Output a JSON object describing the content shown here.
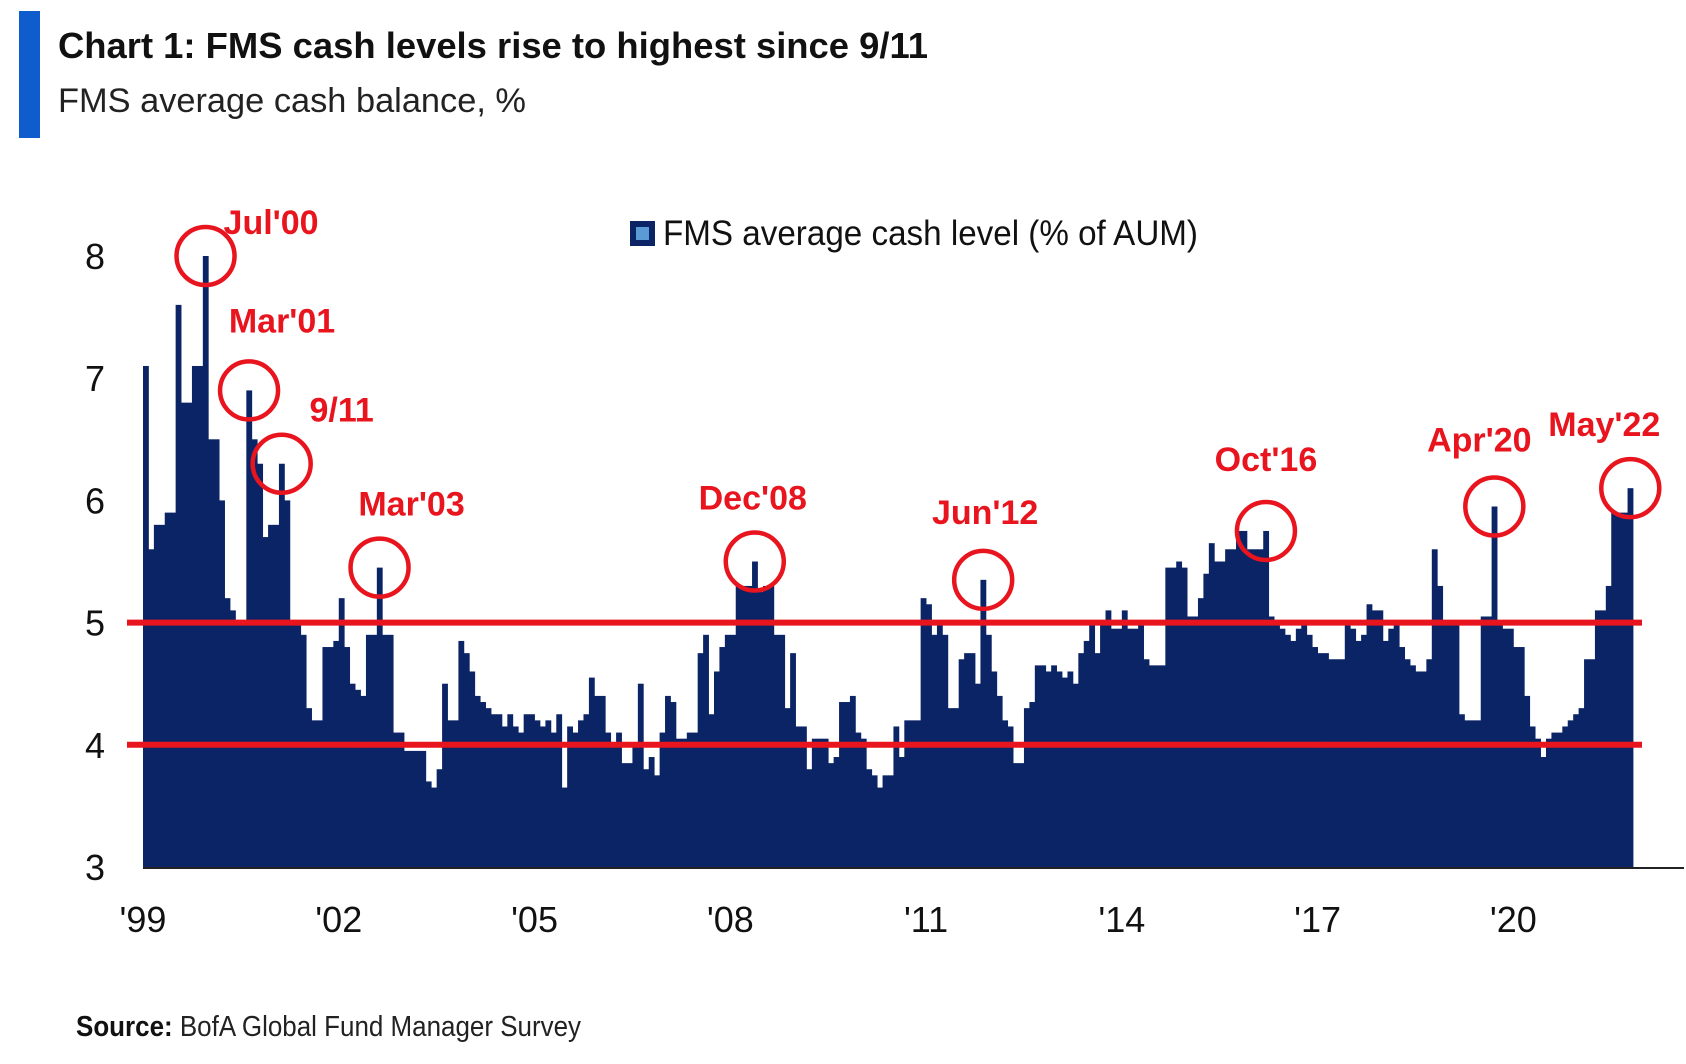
{
  "header": {
    "title": "Chart 1: FMS cash levels rise to highest since 9/11",
    "subtitle": "FMS average cash balance, %"
  },
  "footer": {
    "source_label": "Source:",
    "source_text": " BofA Global Fund Manager Survey"
  },
  "colors": {
    "accent_bar": "#0f5ccc",
    "bars": "#0b2466",
    "reference_lines": "#e8141e",
    "annotations": "#e8141e",
    "legend_inner": "#5b9bd5"
  },
  "chart_data": {
    "type": "bar",
    "title": "Chart 1: FMS cash levels rise to highest since 9/11",
    "subtitle": "FMS average cash balance, %",
    "xlabel": "",
    "ylabel": "",
    "ylim": [
      3,
      8
    ],
    "y_ticks": [
      "3",
      "4",
      "5",
      "6",
      "7",
      "8"
    ],
    "x_ticks": [
      "'99",
      "'02",
      "'05",
      "'08",
      "'11",
      "'14",
      "'17",
      "'20"
    ],
    "grid": false,
    "legend": {
      "placement": "top-center",
      "entries": [
        "FMS average cash level (% of AUM)"
      ]
    },
    "frequency": "monthly",
    "reference_lines": [
      5,
      4
    ],
    "series": [
      {
        "name": "FMS average cash level (% of AUM)",
        "data_by_year": {
          "1999": [
            7.1,
            5.6,
            5.8,
            5.8,
            5.9
          ],
          "2000": [
            5.9,
            7.6,
            6.8,
            6.8,
            7.1,
            7.1,
            8.0,
            6.5,
            6.5,
            6.0,
            5.2,
            5.1
          ],
          "2001": [
            5.0,
            5.0,
            6.9,
            6.5,
            6.3,
            5.7,
            5.8,
            5.8,
            6.3,
            6.0,
            5.0,
            5.0
          ],
          "2002": [
            4.9,
            4.3,
            4.2,
            4.2,
            4.8,
            4.8,
            4.85,
            5.2,
            4.8,
            4.5,
            4.45,
            4.4
          ],
          "2003": [
            4.9,
            4.9,
            5.45,
            4.9,
            4.9,
            4.1,
            4.1,
            3.95,
            3.95,
            3.95,
            3.95,
            3.7
          ],
          "2004": [
            3.65,
            3.8,
            4.5,
            4.2,
            4.2,
            4.85,
            4.75,
            4.6,
            4.4,
            4.35,
            4.3,
            4.25
          ],
          "2005": [
            4.25,
            4.15,
            4.25,
            4.15,
            4.1,
            4.25,
            4.25,
            4.2,
            4.15,
            4.2,
            4.1,
            4.25
          ],
          "2006": [
            3.65,
            4.15,
            4.1,
            4.2,
            4.25,
            4.55,
            4.4,
            4.4,
            4.1,
            4.0,
            4.1,
            3.85
          ],
          "2007": [
            3.85,
            4.0,
            4.5,
            3.8,
            3.9,
            3.75,
            4.1,
            4.4,
            4.35,
            4.05,
            4.05,
            4.1
          ],
          "2008": [
            4.1,
            4.75,
            4.9,
            4.25,
            4.6,
            4.8,
            4.9,
            4.9,
            5.3,
            5.3,
            5.3,
            5.5
          ],
          "2009": [
            5.25,
            5.3,
            5.3,
            4.9,
            4.9,
            4.3,
            4.75,
            4.15,
            4.15,
            3.8,
            4.05,
            4.05
          ],
          "2010": [
            4.05,
            3.85,
            3.9,
            4.35,
            4.35,
            4.4,
            4.1,
            4.05,
            3.8,
            3.75,
            3.65,
            3.75
          ],
          "2011": [
            3.75,
            4.15,
            3.9,
            4.2,
            4.2,
            4.2,
            5.2,
            5.15,
            4.9,
            5.0,
            4.9,
            4.3
          ],
          "2012": [
            4.3,
            4.7,
            4.75,
            4.75,
            4.5,
            5.35,
            4.9,
            4.6,
            4.4,
            4.2,
            4.15,
            3.85
          ],
          "2013": [
            3.85,
            4.3,
            4.35,
            4.65,
            4.65,
            4.6,
            4.65,
            4.6,
            4.55,
            4.6,
            4.5,
            4.75
          ],
          "2014": [
            4.85,
            5.0,
            4.75,
            5.0,
            5.1,
            4.95,
            4.95,
            5.1,
            4.95,
            4.95,
            5.0,
            4.7
          ],
          "2015": [
            4.65,
            4.65,
            4.65,
            5.45,
            5.45,
            5.5,
            5.45,
            5.05,
            5.05,
            5.2,
            5.4,
            5.65
          ],
          "2016": [
            5.5,
            5.5,
            5.6,
            5.6,
            5.75,
            5.75,
            5.6,
            5.6,
            5.6,
            5.75,
            5.05,
            5.0
          ],
          "2017": [
            4.95,
            4.9,
            4.85,
            4.95,
            5.0,
            4.9,
            4.8,
            4.75,
            4.75,
            4.7,
            4.7,
            4.7
          ],
          "2018": [
            5.0,
            4.95,
            4.85,
            4.9,
            5.15,
            5.1,
            5.1,
            4.85,
            4.95,
            5.0,
            4.8,
            4.7
          ],
          "2019": [
            4.65,
            4.6,
            4.6,
            4.7,
            5.6,
            5.3,
            5.0,
            5.0,
            5.0,
            4.25,
            4.2,
            4.2
          ],
          "2020": [
            4.2,
            5.05,
            5.05,
            5.95,
            5.0,
            4.95,
            4.95,
            4.8,
            4.8,
            4.4,
            4.15,
            4.05
          ],
          "2021": [
            3.9,
            4.05,
            4.1,
            4.1,
            4.15,
            4.2,
            4.25,
            4.3,
            4.7,
            4.7,
            5.1,
            5.1
          ],
          "2022": [
            5.3,
            5.9,
            5.9,
            5.9,
            6.1
          ]
        }
      }
    ],
    "annotations": [
      {
        "label": "Jul'00",
        "date": "2000-07"
      },
      {
        "label": "Mar'01",
        "date": "2001-03"
      },
      {
        "label": "9/11",
        "date": "2001-09"
      },
      {
        "label": "Mar'03",
        "date": "2003-03"
      },
      {
        "label": "Dec'08",
        "date": "2008-12"
      },
      {
        "label": "Jun'12",
        "date": "2012-06"
      },
      {
        "label": "Oct'16",
        "date": "2016-10"
      },
      {
        "label": "Apr'20",
        "date": "2020-04"
      },
      {
        "label": "May'22",
        "date": "2022-05"
      }
    ]
  }
}
